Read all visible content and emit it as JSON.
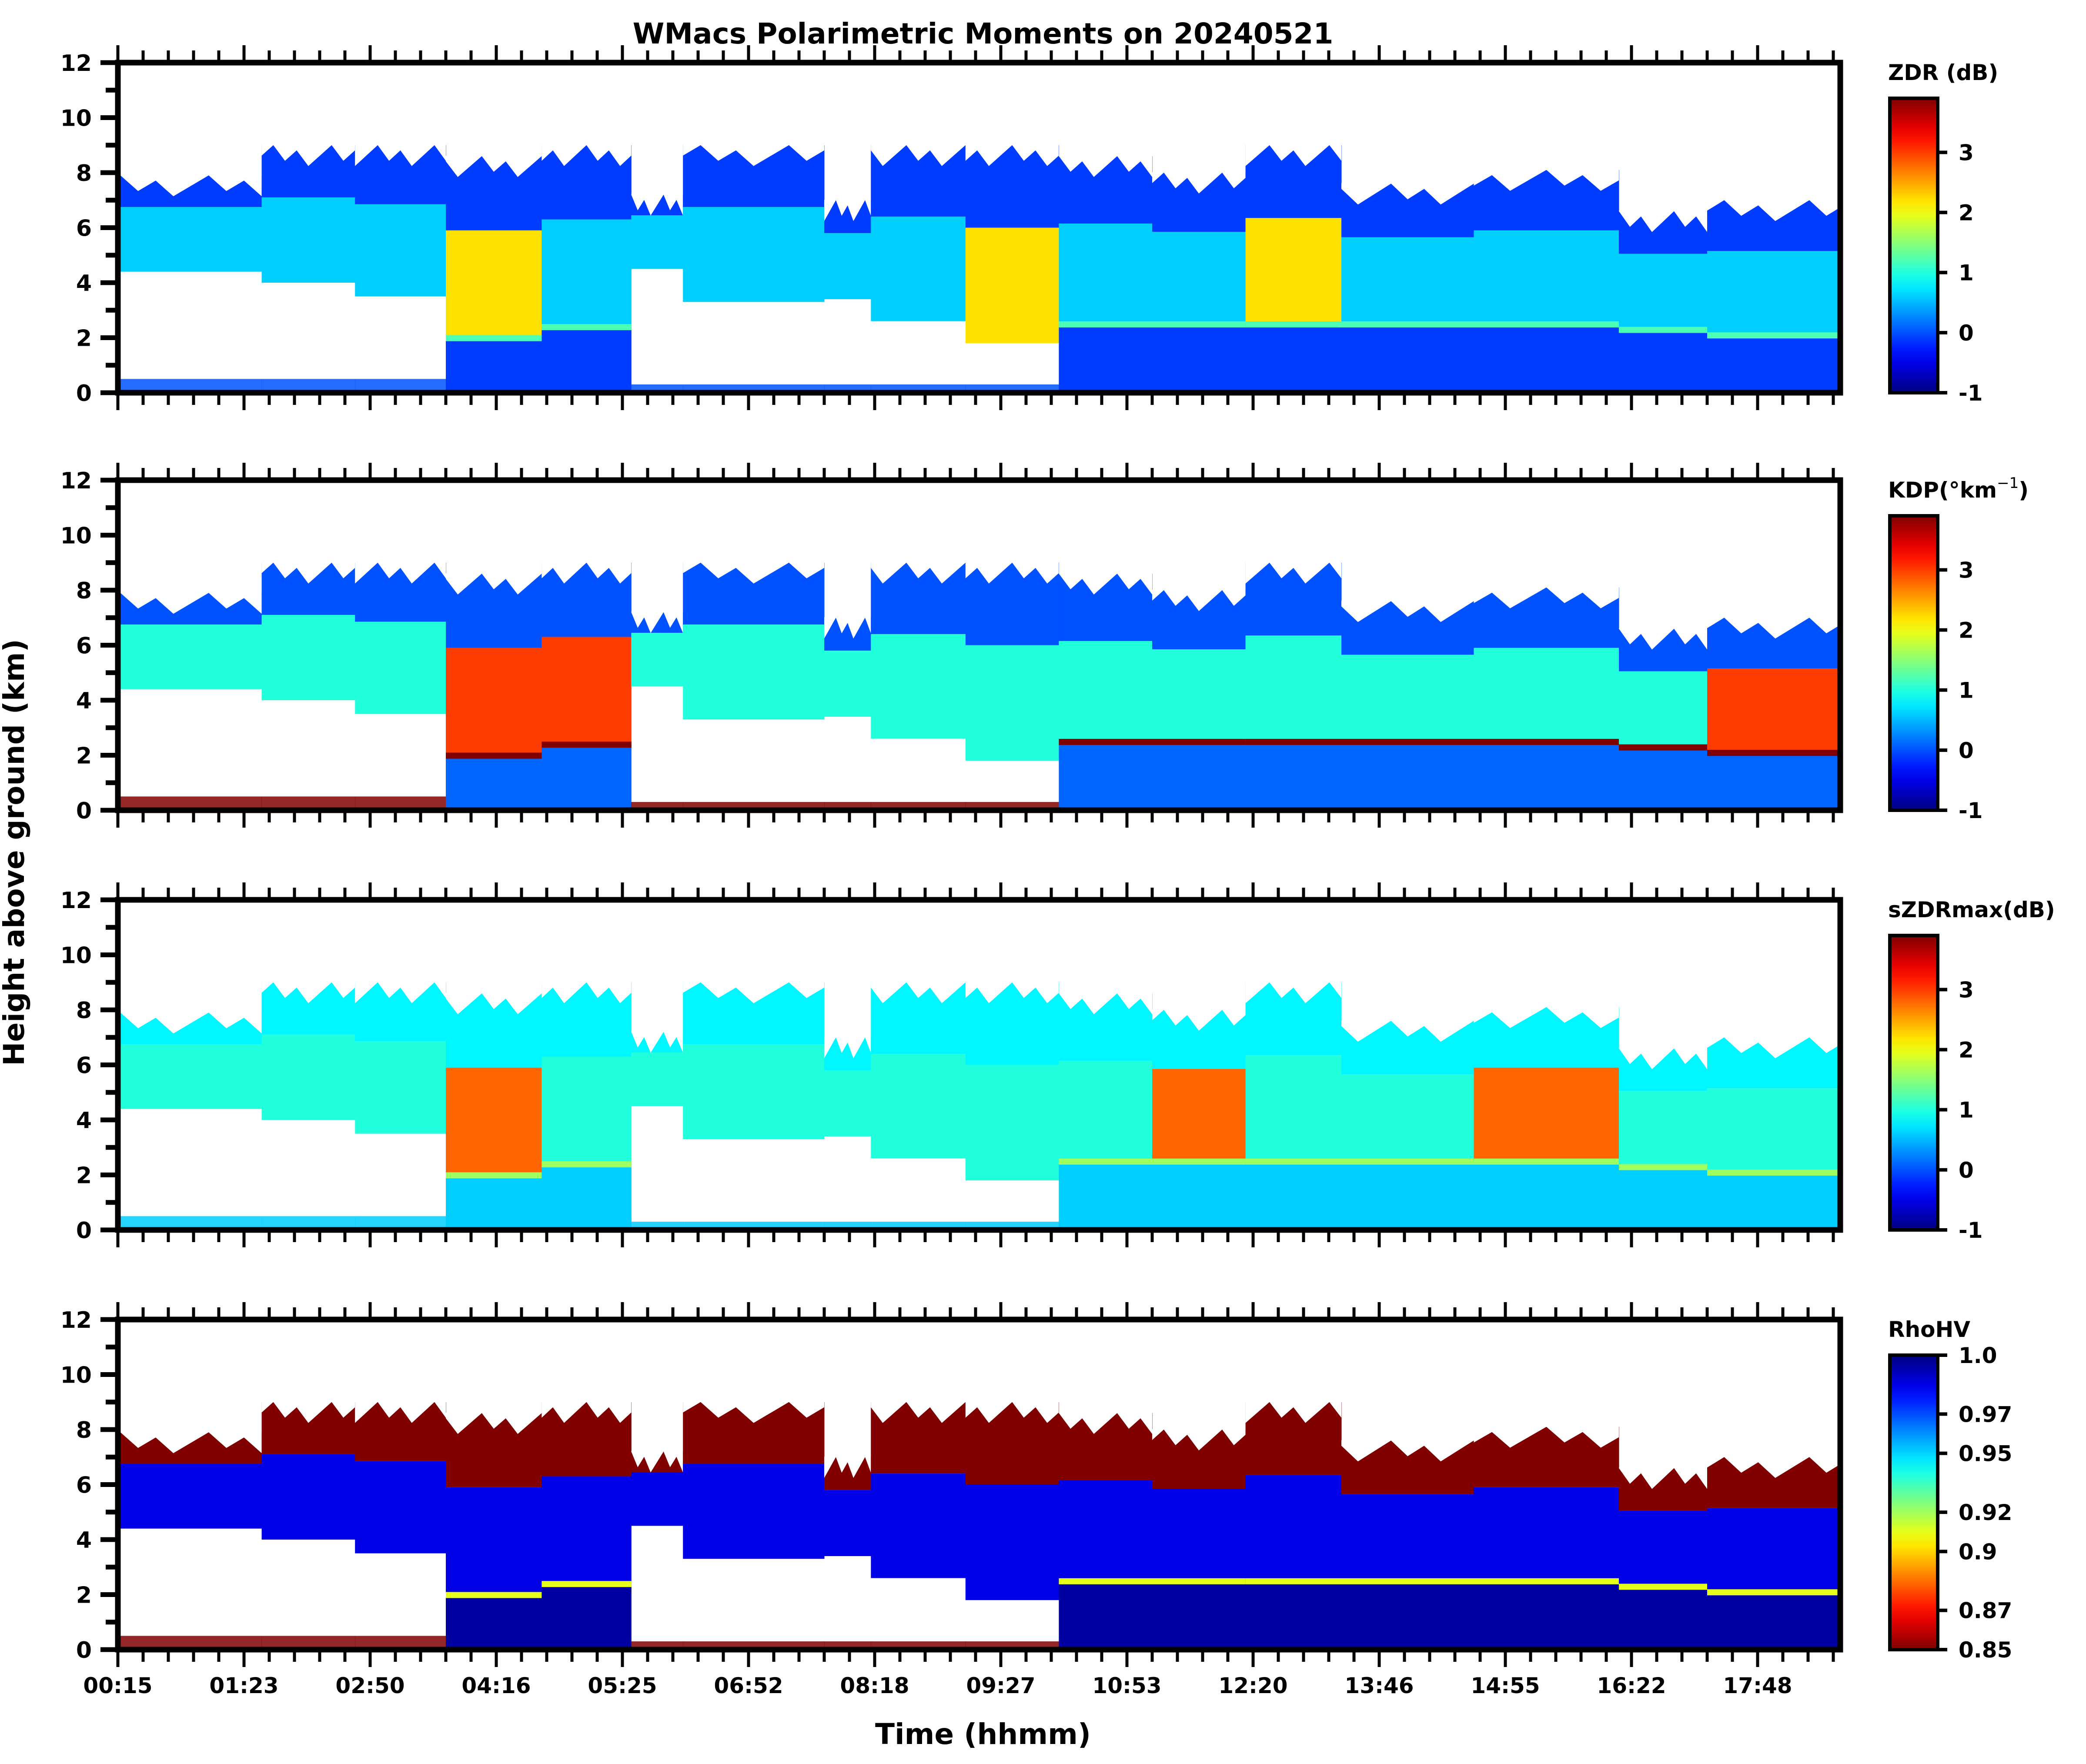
{
  "chart_data": {
    "type": "heatmap",
    "title": "WMacs Polarimetric Moments on 20240521",
    "xlabel": "Time (hhmm)",
    "ylabel": "Height above ground (km)",
    "x_tick_labels": [
      "00:15",
      "01:23",
      "02:50",
      "04:16",
      "05:25",
      "06:52",
      "08:18",
      "09:27",
      "10:53",
      "12:20",
      "13:46",
      "14:55",
      "16:22",
      "17:48"
    ],
    "x_minor_per_major": 5,
    "x_range_ticks": [
      -0.02,
      13.68
    ],
    "ylim": [
      0,
      12
    ],
    "y_ticks": [
      0,
      2,
      4,
      6,
      8,
      10,
      12
    ],
    "y_tick_labels": [
      "0",
      "2",
      "4",
      "6",
      "8",
      "10",
      "12"
    ],
    "y_minor_step": 1,
    "cloud_columns": [
      {
        "x": [
          0.02,
          1.14
        ],
        "top": 7.9,
        "base": 4.4,
        "low": 0.5
      },
      {
        "x": [
          1.14,
          1.88
        ],
        "top": 9.0,
        "base": 4.0,
        "low": 0.5
      },
      {
        "x": [
          1.88,
          2.6
        ],
        "top": 9.0,
        "base": 3.5,
        "low": 0.5
      },
      {
        "x": [
          2.6,
          3.36
        ],
        "top": 8.6,
        "base": 2.0,
        "low": 2.0
      },
      {
        "x": [
          3.36,
          4.07
        ],
        "top": 9.0,
        "base": 2.4,
        "low": 2.4
      },
      {
        "x": [
          4.07,
          4.48
        ],
        "top": 7.2,
        "base": 4.5,
        "low": 0.3
      },
      {
        "x": [
          4.48,
          5.6
        ],
        "top": 9.0,
        "base": 3.3,
        "low": 0.3
      },
      {
        "x": [
          5.6,
          5.97
        ],
        "top": 7.0,
        "base": 3.4,
        "low": 0.3
      },
      {
        "x": [
          5.97,
          6.72
        ],
        "top": 9.0,
        "base": 2.6,
        "low": 0.3
      },
      {
        "x": [
          6.72,
          7.46
        ],
        "top": 9.0,
        "base": 1.8,
        "low": 0.3
      },
      {
        "x": [
          7.46,
          8.2
        ],
        "top": 8.6,
        "base": 2.5,
        "low": 2.5
      },
      {
        "x": [
          8.2,
          8.94
        ],
        "top": 8.0,
        "base": 2.5,
        "low": 2.5
      },
      {
        "x": [
          8.94,
          9.7
        ],
        "top": 9.0,
        "base": 2.5,
        "low": 2.5
      },
      {
        "x": [
          9.7,
          10.75
        ],
        "top": 7.6,
        "base": 2.5,
        "low": 2.5
      },
      {
        "x": [
          10.75,
          11.9
        ],
        "top": 8.1,
        "base": 2.5,
        "low": 2.5
      },
      {
        "x": [
          11.9,
          12.6
        ],
        "top": 6.6,
        "base": 2.3,
        "low": 2.3
      },
      {
        "x": [
          12.6,
          13.68
        ],
        "top": 7.0,
        "base": 2.1,
        "low": 2.1
      }
    ],
    "panels": [
      {
        "name": "ZDR",
        "colorbar_label": "ZDR (dB)",
        "colormap": "jet",
        "vmin": -1,
        "vmax": 3.9,
        "cb_ticks": [
          -1,
          0,
          1,
          2,
          3
        ],
        "cb_tick_labels": [
          "-1",
          "0",
          "1",
          "2",
          "3"
        ],
        "cloud_value_upper": -0.1,
        "cloud_value_lower": 0.6,
        "rain_value": -0.1,
        "melting_layer_value": 1.2,
        "clutter_value": 0.0,
        "highlight_columns": [
          3,
          9,
          12
        ],
        "highlight_value": 2.2
      },
      {
        "name": "KDP",
        "colorbar_label": "KDP(°km",
        "colorbar_label_sup": "−1",
        "colorbar_label_end": ")",
        "colormap": "jet",
        "vmin": -1,
        "vmax": 3.9,
        "cb_ticks": [
          -1,
          0,
          1,
          2,
          3
        ],
        "cb_tick_labels": [
          "-1",
          "0",
          "1",
          "2",
          "3"
        ],
        "cloud_value_upper": 0.0,
        "cloud_value_lower": 1.0,
        "rain_value": 0.1,
        "melting_layer_value": 3.9,
        "clutter_value": 3.9,
        "highlight_columns": [
          3,
          4,
          16
        ],
        "highlight_value": 3.0
      },
      {
        "name": "sZDRmax",
        "colorbar_label": "sZDRmax(dB)",
        "colormap": "jet",
        "vmin": -1,
        "vmax": 3.9,
        "cb_ticks": [
          -1,
          0,
          1,
          2,
          3
        ],
        "cb_tick_labels": [
          "-1",
          "0",
          "1",
          "2",
          "3"
        ],
        "cloud_value_upper": 0.8,
        "cloud_value_lower": 1.0,
        "rain_value": 0.6,
        "melting_layer_value": 1.6,
        "clutter_value": 0.6,
        "highlight_columns": [
          3,
          11,
          14
        ],
        "highlight_value": 2.8
      },
      {
        "name": "RhoHV",
        "colorbar_label": "RhoHV",
        "colormap": "jet_r",
        "vmin": 0.85,
        "vmax": 1.0,
        "cb_ticks": [
          0.85,
          0.87,
          0.9,
          0.92,
          0.95,
          0.97,
          1.0
        ],
        "cb_tick_labels": [
          "0.85",
          "0.87",
          "0.9",
          "0.92",
          "0.95",
          "0.97",
          "1.0"
        ],
        "cloud_value_upper": 0.85,
        "cloud_value_lower": 0.985,
        "rain_value": 0.995,
        "melting_layer_value": 0.91,
        "clutter_value": 0.85,
        "highlight_columns": [],
        "highlight_value": 0.96
      }
    ]
  }
}
